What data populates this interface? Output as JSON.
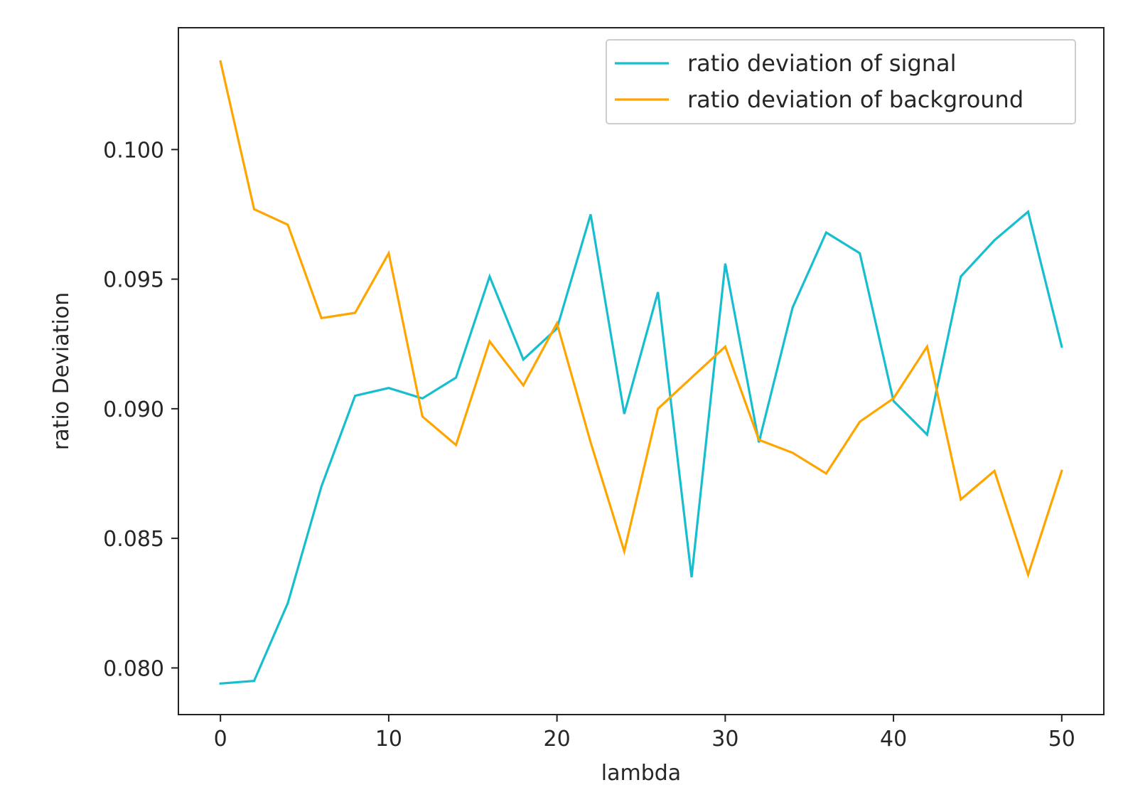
{
  "chart_data": {
    "type": "line",
    "title": "",
    "xlabel": "lambda",
    "ylabel": "ratio Deviation",
    "xlim": [
      -2.5,
      52.5
    ],
    "ylim": [
      0.0782,
      0.1047
    ],
    "xticks": [
      0,
      10,
      20,
      30,
      40,
      50
    ],
    "xtick_labels": [
      "0",
      "10",
      "20",
      "30",
      "40",
      "50"
    ],
    "yticks": [
      0.08,
      0.085,
      0.09,
      0.095,
      0.1
    ],
    "ytick_labels": [
      "0.080",
      "0.085",
      "0.090",
      "0.095",
      "0.100"
    ],
    "grid": false,
    "legend_position": "top-right",
    "x": [
      0,
      2,
      4,
      6,
      8,
      10,
      12,
      14,
      16,
      18,
      20,
      22,
      24,
      26,
      28,
      30,
      32,
      34,
      36,
      38,
      40,
      42,
      44,
      46,
      48,
      50
    ],
    "series": [
      {
        "name": "ratio deviation of signal",
        "color": "#17becf",
        "values": [
          0.0794,
          0.0795,
          0.0825,
          0.087,
          0.0905,
          0.0908,
          0.0904,
          0.0912,
          0.0951,
          0.0919,
          0.0931,
          0.0975,
          0.0898,
          0.0945,
          0.0835,
          0.0956,
          0.0887,
          0.0939,
          0.0968,
          0.096,
          0.0903,
          0.089,
          0.0951,
          0.0965,
          0.0976,
          0.0924
        ]
      },
      {
        "name": "ratio deviation of background",
        "color": "#ffa500",
        "values": [
          0.1034,
          0.0977,
          0.0971,
          0.0935,
          0.0937,
          0.096,
          0.0897,
          0.0886,
          0.0926,
          0.0909,
          0.0933,
          0.0887,
          0.0845,
          0.09,
          0.0912,
          0.0924,
          0.0888,
          0.0883,
          0.0875,
          0.0895,
          0.0904,
          0.0924,
          0.0865,
          0.0876,
          0.0836,
          0.0876
        ]
      }
    ]
  }
}
